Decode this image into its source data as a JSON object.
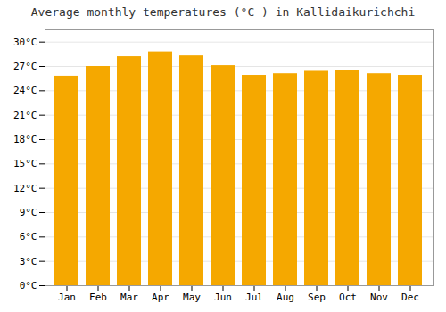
{
  "chart_data": {
    "type": "bar",
    "title": "Average monthly temperatures (°C ) in Kallidaikurichchi",
    "categories": [
      "Jan",
      "Feb",
      "Mar",
      "Apr",
      "May",
      "Jun",
      "Jul",
      "Aug",
      "Sep",
      "Oct",
      "Nov",
      "Dec"
    ],
    "values": [
      25.8,
      27.0,
      28.2,
      28.8,
      28.3,
      27.1,
      25.9,
      26.1,
      26.4,
      26.5,
      26.1,
      25.9
    ],
    "color": "#F5A800",
    "ylim": [
      0,
      31.5
    ],
    "yticks": [
      {
        "value": 0,
        "label": "0°C"
      },
      {
        "value": 3,
        "label": "3°C"
      },
      {
        "value": 6,
        "label": "6°C"
      },
      {
        "value": 9,
        "label": "9°C"
      },
      {
        "value": 12,
        "label": "12°C"
      },
      {
        "value": 15,
        "label": "15°C"
      },
      {
        "value": 18,
        "label": "18°C"
      },
      {
        "value": 21,
        "label": "21°C"
      },
      {
        "value": 24,
        "label": "24°C"
      },
      {
        "value": 27,
        "label": "27°C"
      },
      {
        "value": 30,
        "label": "30°C"
      }
    ],
    "grid": true
  }
}
